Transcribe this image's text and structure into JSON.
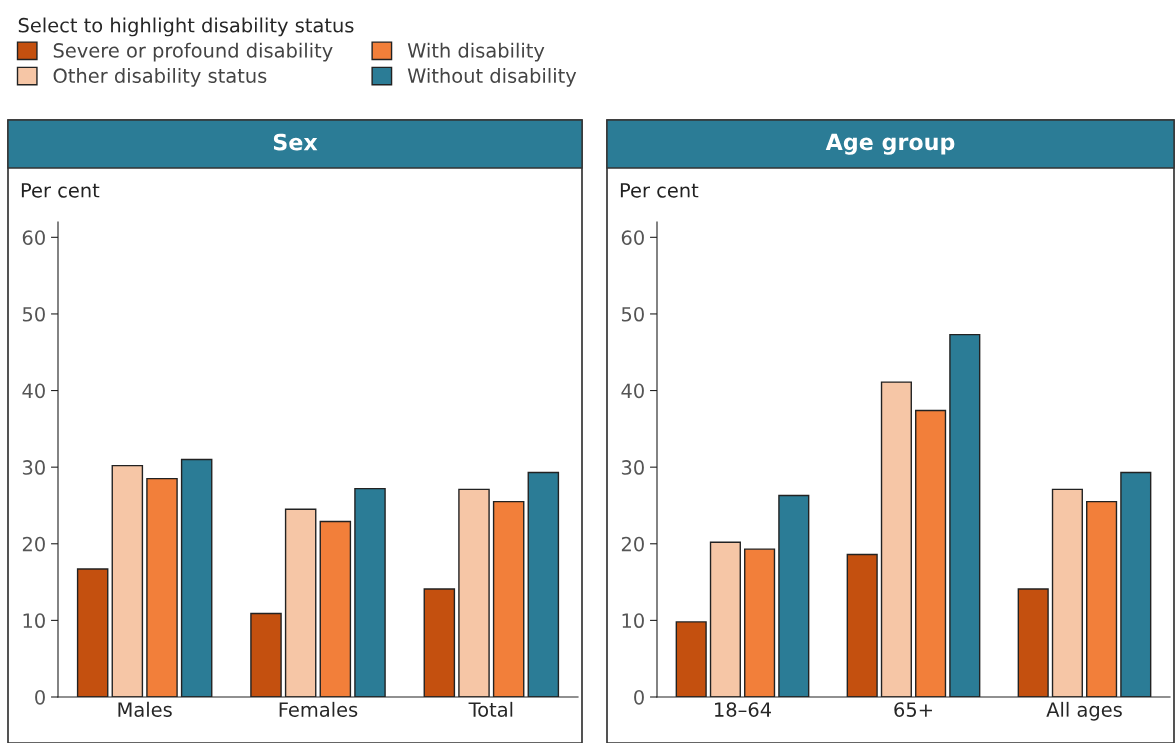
{
  "chart_data": [
    {
      "type": "bar",
      "title": "Sex",
      "ylabel": "Per cent",
      "legend_title": "Select to highlight disability status",
      "legend": "top",
      "categories": [
        "Males",
        "Females",
        "Total"
      ],
      "ylim": [
        0,
        62
      ],
      "yticks": [
        0,
        10,
        20,
        30,
        40,
        50,
        60
      ],
      "grid": false,
      "series": [
        {
          "name": "Severe or profound disability",
          "color": "#c4500f",
          "values": [
            16.7,
            10.9,
            14.1
          ]
        },
        {
          "name": "Other disability status",
          "color": "#f6c6a6",
          "values": [
            30.2,
            24.5,
            27.1
          ]
        },
        {
          "name": "With disability",
          "color": "#f27f3a",
          "values": [
            28.5,
            22.9,
            25.5
          ]
        },
        {
          "name": "Without disability",
          "color": "#2b7c96",
          "values": [
            31.0,
            27.2,
            29.3
          ]
        }
      ]
    },
    {
      "type": "bar",
      "title": "Age group",
      "ylabel": "Per cent",
      "categories": [
        "18–64",
        "65+",
        "All ages"
      ],
      "ylim": [
        0,
        62
      ],
      "yticks": [
        0,
        10,
        20,
        30,
        40,
        50,
        60
      ],
      "grid": false,
      "series": [
        {
          "color": "#c4500f",
          "values": [
            9.8,
            18.6,
            14.1
          ]
        },
        {
          "color": "#f6c6a6",
          "values": [
            20.2,
            41.1,
            27.1
          ]
        },
        {
          "color": "#f27f3a",
          "values": [
            19.3,
            37.4,
            25.5
          ]
        },
        {
          "color": "#2b7c96",
          "values": [
            26.3,
            47.3,
            29.3
          ]
        }
      ]
    }
  ]
}
